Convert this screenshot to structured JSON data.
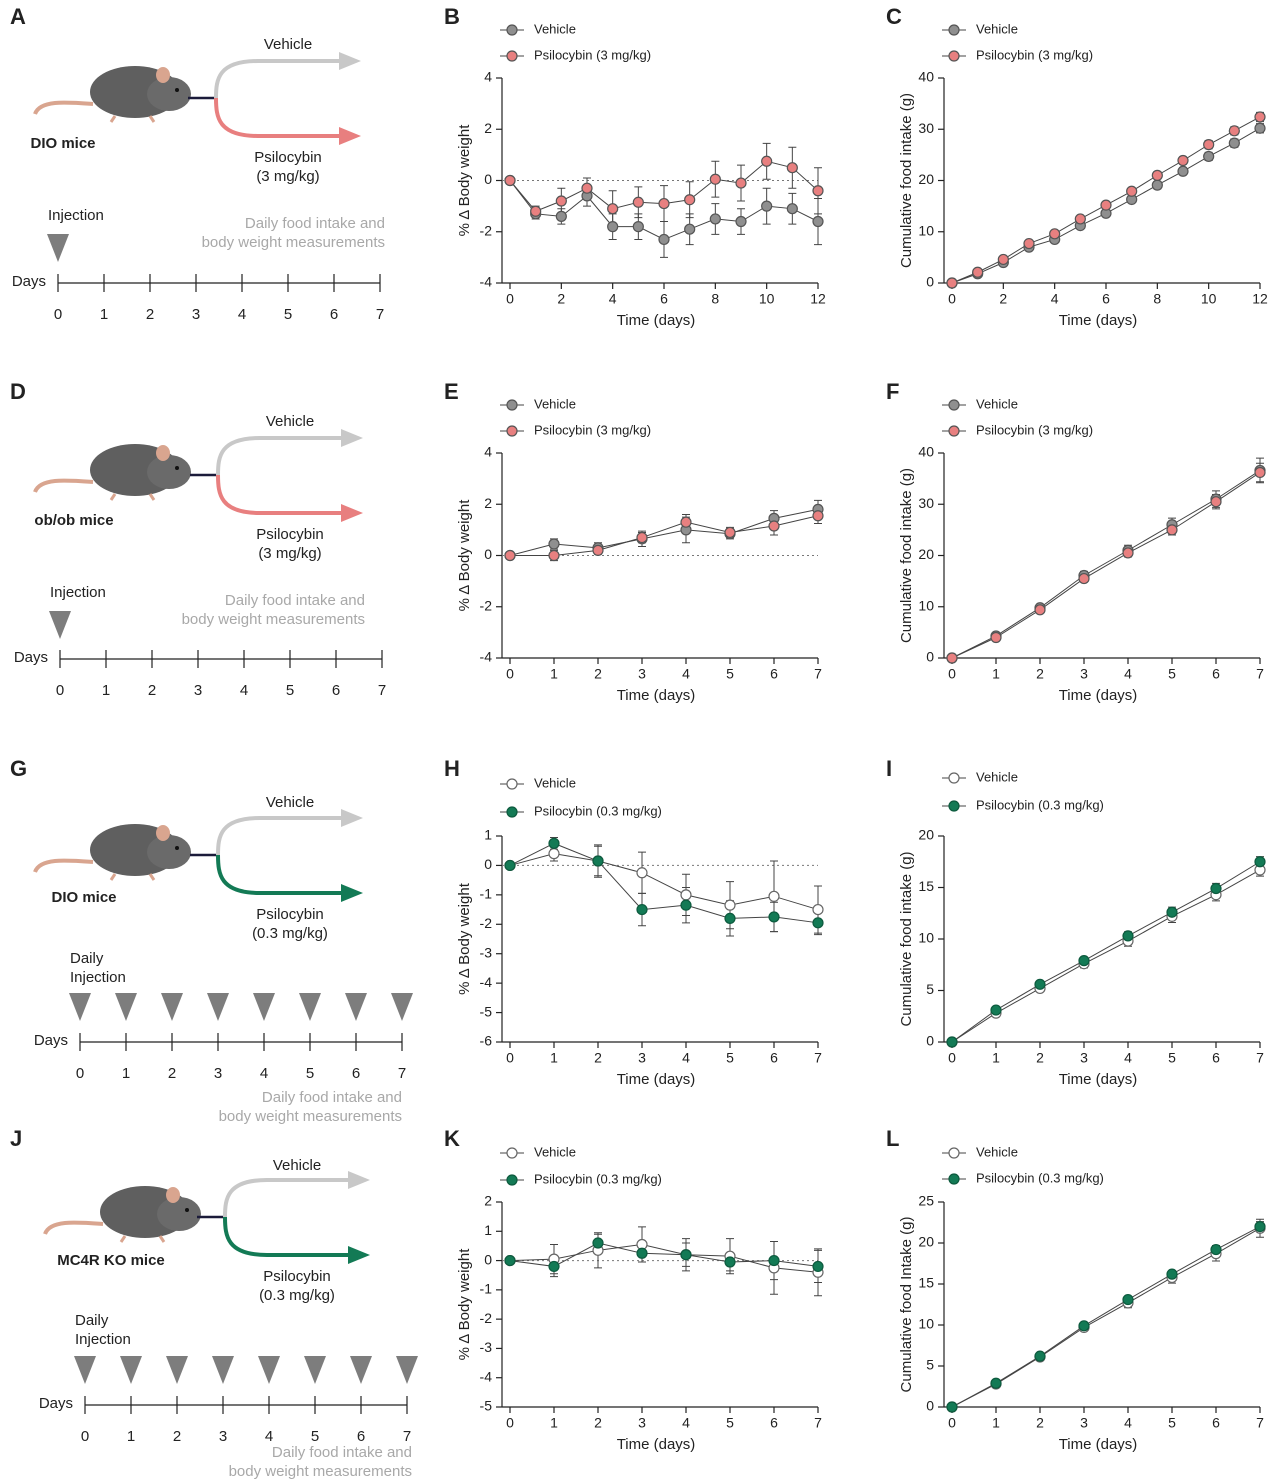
{
  "schematics": [
    {
      "panel": "A",
      "vehicle": "Vehicle",
      "treatment": [
        "Psilocybin",
        "(3 mg/kg)"
      ],
      "group": "DIO  mice",
      "injection": [
        "Injection"
      ],
      "note": [
        "Daily food intake and",
        "body weight measurements"
      ],
      "timeline": "Days",
      "days": [
        0,
        1,
        2,
        3,
        4,
        5,
        6,
        7
      ],
      "arrow_colors": [
        "#c8c8c8",
        "#e87f7f"
      ]
    },
    {
      "panel": "D",
      "vehicle": "Vehicle",
      "treatment": [
        "Psilocybin",
        "(3 mg/kg)"
      ],
      "group": "ob/ob mice",
      "injection": [
        "Injection"
      ],
      "note": [
        "Daily food intake and",
        "body weight measurements"
      ],
      "timeline": "Days",
      "days": [
        0,
        1,
        2,
        3,
        4,
        5,
        6,
        7
      ],
      "arrow_colors": [
        "#c8c8c8",
        "#e87f7f"
      ]
    },
    {
      "panel": "G",
      "vehicle": "Vehicle",
      "treatment": [
        "Psilocybin",
        "(0.3 mg/kg)"
      ],
      "group": "DIO mice",
      "injection": [
        "Daily",
        "Injection"
      ],
      "note": [
        "Daily food intake and",
        "body weight measurements"
      ],
      "timeline": "Days",
      "days": [
        0,
        1,
        2,
        3,
        4,
        5,
        6,
        7
      ],
      "arrow_colors": [
        "#c8c8c8",
        "#137a55"
      ]
    },
    {
      "panel": "J",
      "vehicle": "Vehicle",
      "treatment": [
        "Psilocybin",
        "(0.3 mg/kg)"
      ],
      "group": "MC4R KO mice",
      "injection": [
        "Daily",
        "Injection"
      ],
      "note": [
        "Daily food intake and",
        "body weight measurements"
      ],
      "timeline": "Days",
      "days": [
        0,
        1,
        2,
        3,
        4,
        5,
        6,
        7
      ],
      "arrow_colors": [
        "#c8c8c8",
        "#137a55"
      ]
    }
  ],
  "chart_data": [
    {
      "type": "line",
      "panel": "B",
      "x_label": "Time (days)",
      "y_label": "% Δ Body weight",
      "x": [
        0,
        1,
        2,
        3,
        4,
        5,
        6,
        7,
        8,
        9,
        10,
        11,
        12
      ],
      "xlim": [
        0,
        12
      ],
      "xticks": [
        0,
        2,
        4,
        6,
        8,
        10,
        12
      ],
      "ylim": [
        -4,
        4
      ],
      "yticks": [
        -4,
        -2,
        0,
        2,
        4
      ],
      "reference_line": 0,
      "series": [
        {
          "name": "Vehicle",
          "color": "#8f8f8f",
          "edge_color": "#555555",
          "values": [
            0,
            -1.3,
            -1.4,
            -0.6,
            -1.8,
            -1.8,
            -2.3,
            -1.9,
            -1.5,
            -1.6,
            -1.0,
            -1.1,
            -1.6
          ],
          "errors": [
            0,
            0.2,
            0.3,
            0.4,
            0.5,
            0.5,
            0.7,
            0.6,
            0.6,
            0.5,
            0.7,
            0.6,
            0.9
          ]
        },
        {
          "name": "Psilocybin (3 mg/kg)",
          "color": "#e88080",
          "edge_color": "#555555",
          "values": [
            0,
            -1.2,
            -0.8,
            -0.3,
            -1.1,
            -0.85,
            -0.9,
            -0.75,
            0.05,
            -0.1,
            0.75,
            0.5,
            -0.4
          ],
          "errors": [
            0,
            0.2,
            0.5,
            0.4,
            0.7,
            0.6,
            0.7,
            0.7,
            0.7,
            0.7,
            0.7,
            0.8,
            0.9
          ]
        }
      ]
    },
    {
      "type": "line",
      "panel": "C",
      "x_label": "Time (days)",
      "y_label": "Cumulative food intake (g)",
      "x": [
        0,
        1,
        2,
        3,
        4,
        5,
        6,
        7,
        8,
        9,
        10,
        11,
        12
      ],
      "xlim": [
        0,
        12
      ],
      "xticks": [
        0,
        2,
        4,
        6,
        8,
        10,
        12
      ],
      "ylim": [
        0,
        40
      ],
      "yticks": [
        0,
        10,
        20,
        30,
        40
      ],
      "series": [
        {
          "name": "Vehicle",
          "color": "#8f8f8f",
          "edge_color": "#555555",
          "values": [
            0,
            1.8,
            4.0,
            7.0,
            8.5,
            11.2,
            13.6,
            16.3,
            19.1,
            21.8,
            24.7,
            27.3,
            30.2
          ],
          "errors": [
            0,
            0.3,
            0.4,
            0.5,
            0.5,
            0.5,
            0.6,
            0.6,
            0.7,
            0.7,
            0.8,
            0.8,
            0.9
          ]
        },
        {
          "name": "Psilocybin (3 mg/kg)",
          "color": "#e88080",
          "edge_color": "#555555",
          "values": [
            0,
            2.1,
            4.6,
            7.7,
            9.6,
            12.5,
            15.2,
            17.9,
            21.0,
            23.9,
            27.0,
            29.7,
            32.4
          ],
          "errors": [
            0,
            0.3,
            0.4,
            0.5,
            0.5,
            0.5,
            0.6,
            0.6,
            0.7,
            0.7,
            0.8,
            0.8,
            0.9
          ]
        }
      ]
    },
    {
      "type": "line",
      "panel": "E",
      "x_label": "Time (days)",
      "y_label": "% Δ Body weight",
      "x": [
        0,
        1,
        2,
        3,
        4,
        5,
        6,
        7
      ],
      "xlim": [
        0,
        7
      ],
      "xticks": [
        0,
        1,
        2,
        3,
        4,
        5,
        6,
        7
      ],
      "ylim": [
        -4,
        4
      ],
      "yticks": [
        -4,
        -2,
        0,
        2,
        4
      ],
      "reference_line": 0,
      "series": [
        {
          "name": "Vehicle",
          "color": "#8f8f8f",
          "edge_color": "#555555",
          "values": [
            0,
            0.45,
            0.3,
            0.65,
            1.0,
            0.85,
            1.45,
            1.8
          ],
          "errors": [
            0,
            0.2,
            0.2,
            0.3,
            0.5,
            0.2,
            0.3,
            0.35
          ]
        },
        {
          "name": "Psilocybin (3 mg/kg)",
          "color": "#e88080",
          "edge_color": "#555555",
          "values": [
            0,
            0.0,
            0.2,
            0.7,
            1.3,
            0.9,
            1.15,
            1.55
          ],
          "errors": [
            0,
            0.2,
            0.15,
            0.2,
            0.3,
            0.2,
            0.35,
            0.3
          ]
        }
      ]
    },
    {
      "type": "line",
      "panel": "F",
      "x_label": "Time (days)",
      "y_label": "Cumulative food intake (g)",
      "x": [
        0,
        1,
        2,
        3,
        4,
        5,
        6,
        7
      ],
      "xlim": [
        0,
        7
      ],
      "xticks": [
        0,
        1,
        2,
        3,
        4,
        5,
        6,
        7
      ],
      "ylim": [
        0,
        40
      ],
      "yticks": [
        0,
        10,
        20,
        30,
        40
      ],
      "series": [
        {
          "name": "Vehicle",
          "color": "#8f8f8f",
          "edge_color": "#555555",
          "values": [
            0,
            4.3,
            9.8,
            16.1,
            21.0,
            26.0,
            31.0,
            36.6
          ],
          "errors": [
            0,
            0.5,
            0.7,
            0.8,
            1.0,
            1.3,
            1.6,
            2.4
          ]
        },
        {
          "name": "Psilocybin (3 mg/kg)",
          "color": "#e88080",
          "edge_color": "#555555",
          "values": [
            0,
            4.0,
            9.4,
            15.5,
            20.5,
            25.0,
            30.5,
            36.2
          ],
          "errors": [
            0,
            0.4,
            0.6,
            0.7,
            0.8,
            1.0,
            1.4,
            1.8
          ]
        }
      ]
    },
    {
      "type": "line",
      "panel": "H",
      "x_label": "Time (days)",
      "y_label": "% Δ Body weight",
      "x": [
        0,
        1,
        2,
        3,
        4,
        5,
        6,
        7
      ],
      "xlim": [
        0,
        7
      ],
      "xticks": [
        0,
        1,
        2,
        3,
        4,
        5,
        6,
        7
      ],
      "ylim": [
        -6,
        1
      ],
      "yticks": [
        -6,
        -5,
        -4,
        -3,
        -2,
        -1,
        0,
        1
      ],
      "reference_line": 0,
      "series": [
        {
          "name": "Vehicle",
          "color": "#ffffff",
          "edge_color": "#666666",
          "values": [
            0,
            0.4,
            0.15,
            -0.25,
            -1.0,
            -1.35,
            -1.05,
            -1.5
          ],
          "errors": [
            0,
            0.25,
            0.55,
            0.7,
            0.7,
            0.8,
            1.2,
            0.8
          ]
        },
        {
          "name": "Psilocybin (0.3 mg/kg)",
          "color": "#137a55",
          "edge_color": "#0d5a3e",
          "values": [
            0,
            0.75,
            0.15,
            -1.5,
            -1.35,
            -1.8,
            -1.75,
            -1.95
          ],
          "errors": [
            0,
            0.2,
            0.5,
            0.55,
            0.6,
            0.6,
            0.5,
            0.4
          ]
        }
      ]
    },
    {
      "type": "line",
      "panel": "I",
      "x_label": "Time (days)",
      "y_label": "Cumulative food intake (g)",
      "x": [
        0,
        1,
        2,
        3,
        4,
        5,
        6,
        7
      ],
      "xlim": [
        0,
        7
      ],
      "xticks": [
        0,
        1,
        2,
        3,
        4,
        5,
        6,
        7
      ],
      "ylim": [
        0,
        20
      ],
      "yticks": [
        0,
        5,
        10,
        15,
        20
      ],
      "series": [
        {
          "name": "Vehicle",
          "color": "#ffffff",
          "edge_color": "#666666",
          "values": [
            0,
            2.8,
            5.2,
            7.6,
            9.8,
            12.2,
            14.3,
            16.7
          ],
          "errors": [
            0,
            0.2,
            0.3,
            0.4,
            0.5,
            0.6,
            0.6,
            0.6
          ]
        },
        {
          "name": "Psilocybin (0.3 mg/kg)",
          "color": "#137a55",
          "edge_color": "#0d5a3e",
          "values": [
            0,
            3.1,
            5.6,
            7.9,
            10.3,
            12.6,
            14.9,
            17.5
          ],
          "errors": [
            0,
            0.2,
            0.3,
            0.3,
            0.4,
            0.5,
            0.5,
            0.5
          ]
        }
      ]
    },
    {
      "type": "line",
      "panel": "K",
      "x_label": "Time (days)",
      "y_label": "% Δ Body weight",
      "x": [
        0,
        1,
        2,
        3,
        4,
        5,
        6,
        7
      ],
      "xlim": [
        0,
        7
      ],
      "xticks": [
        0,
        1,
        2,
        3,
        4,
        5,
        6,
        7
      ],
      "ylim": [
        -5,
        2
      ],
      "yticks": [
        -5,
        -4,
        -3,
        -2,
        -1,
        0,
        1,
        2
      ],
      "reference_line": 0,
      "series": [
        {
          "name": "Vehicle",
          "color": "#ffffff",
          "edge_color": "#666666",
          "values": [
            0,
            0.05,
            0.35,
            0.55,
            0.2,
            0.15,
            -0.25,
            -0.4
          ],
          "errors": [
            0,
            0.5,
            0.6,
            0.6,
            0.55,
            0.6,
            0.9,
            0.8
          ]
        },
        {
          "name": "Psilocybin (0.3 mg/kg)",
          "color": "#137a55",
          "edge_color": "#0d5a3e",
          "values": [
            0,
            -0.2,
            0.6,
            0.25,
            0.2,
            -0.05,
            0.0,
            -0.2
          ],
          "errors": [
            0,
            0.35,
            0.3,
            0.3,
            0.4,
            0.3,
            0.65,
            0.55
          ]
        }
      ]
    },
    {
      "type": "line",
      "panel": "L",
      "x_label": "Time (days)",
      "y_label": "Cumulative food Intake (g)",
      "x": [
        0,
        1,
        2,
        3,
        4,
        5,
        6,
        7
      ],
      "xlim": [
        0,
        7
      ],
      "xticks": [
        0,
        1,
        2,
        3,
        4,
        5,
        6,
        7
      ],
      "ylim": [
        0,
        25
      ],
      "yticks": [
        0,
        5,
        10,
        15,
        20,
        25
      ],
      "series": [
        {
          "name": "Vehicle",
          "color": "#ffffff",
          "edge_color": "#666666",
          "values": [
            0,
            2.8,
            6.1,
            9.7,
            12.7,
            15.8,
            18.7,
            21.8
          ],
          "errors": [
            0,
            0.2,
            0.3,
            0.4,
            0.6,
            0.7,
            0.9,
            1.1
          ]
        },
        {
          "name": "Psilocybin (0.3 mg/kg)",
          "color": "#137a55",
          "edge_color": "#0d5a3e",
          "values": [
            0,
            2.9,
            6.2,
            9.9,
            13.1,
            16.2,
            19.2,
            22.0
          ],
          "errors": [
            0,
            0.2,
            0.3,
            0.3,
            0.4,
            0.4,
            0.5,
            0.6
          ]
        }
      ]
    }
  ]
}
